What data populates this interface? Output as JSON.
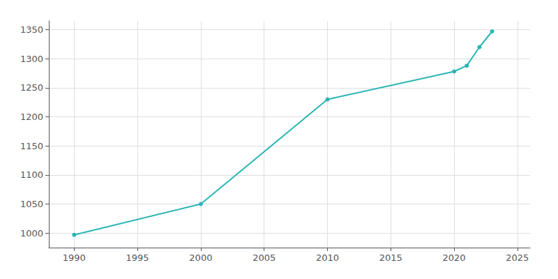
{
  "chart_data": {
    "type": "line",
    "x": [
      1990,
      2000,
      2010,
      2020,
      2021,
      2022,
      2023
    ],
    "values": [
      997,
      1050,
      1230,
      1278,
      1288,
      1320,
      1347
    ],
    "color": "#2ab5b5",
    "marker": "circle",
    "xlim": [
      1988,
      2026
    ],
    "ylim": [
      975,
      1365
    ],
    "xticks": [
      1990,
      1995,
      2000,
      2005,
      2010,
      2015,
      2020,
      2025
    ],
    "yticks": [
      1000,
      1050,
      1100,
      1150,
      1200,
      1250,
      1300,
      1350
    ],
    "grid": true
  }
}
